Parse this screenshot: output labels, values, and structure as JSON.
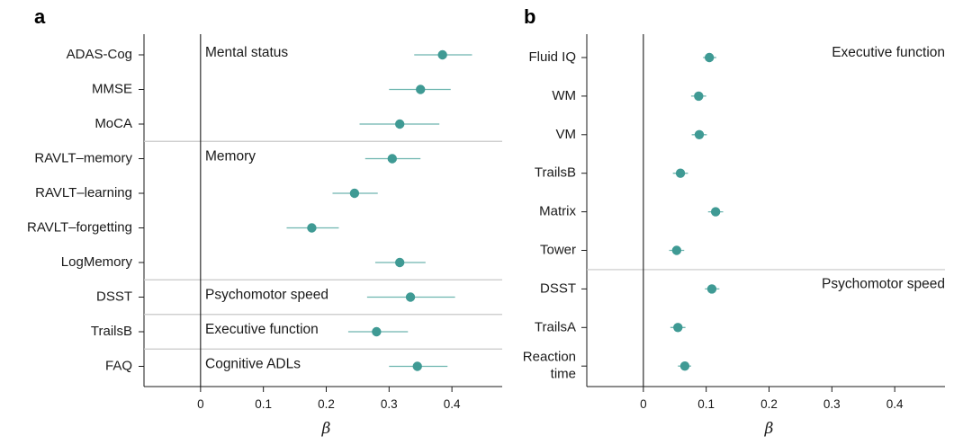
{
  "chart_data": [
    {
      "type": "scatter",
      "panel": "a",
      "xlabel": "β",
      "xlim": [
        -0.09,
        0.48
      ],
      "xticks": [
        "0",
        "0.1",
        "0.2",
        "0.3",
        "0.4"
      ],
      "xtick_values": [
        0,
        0.1,
        0.2,
        0.3,
        0.4
      ],
      "grid": false,
      "error_bars": "horizontal",
      "groups": [
        {
          "name": "Mental status",
          "rows": [
            0,
            1,
            2
          ]
        },
        {
          "name": "Memory",
          "rows": [
            3,
            4,
            5,
            6
          ]
        },
        {
          "name": "Psychomotor speed",
          "rows": [
            7
          ]
        },
        {
          "name": "Executive function",
          "rows": [
            8
          ]
        },
        {
          "name": "Cognitive ADLs",
          "rows": [
            9
          ]
        }
      ],
      "points": [
        {
          "label": [
            "ADAS-Cog"
          ],
          "value": 0.385,
          "lo": 0.34,
          "hi": 0.432
        },
        {
          "label": [
            "MMSE"
          ],
          "value": 0.35,
          "lo": 0.3,
          "hi": 0.398
        },
        {
          "label": [
            "MoCA"
          ],
          "value": 0.317,
          "lo": 0.253,
          "hi": 0.38
        },
        {
          "label": [
            "RAVLT–memory"
          ],
          "value": 0.305,
          "lo": 0.262,
          "hi": 0.35
        },
        {
          "label": [
            "RAVLT–learning"
          ],
          "value": 0.245,
          "lo": 0.21,
          "hi": 0.282
        },
        {
          "label": [
            "RAVLT–forgetting"
          ],
          "value": 0.177,
          "lo": 0.137,
          "hi": 0.22
        },
        {
          "label": [
            "LogMemory"
          ],
          "value": 0.317,
          "lo": 0.278,
          "hi": 0.358
        },
        {
          "label": [
            "DSST"
          ],
          "value": 0.334,
          "lo": 0.265,
          "hi": 0.405
        },
        {
          "label": [
            "TrailsB"
          ],
          "value": 0.28,
          "lo": 0.235,
          "hi": 0.33
        },
        {
          "label": [
            "FAQ"
          ],
          "value": 0.345,
          "lo": 0.3,
          "hi": 0.393
        }
      ]
    },
    {
      "type": "scatter",
      "panel": "b",
      "xlabel": "β",
      "xlim": [
        -0.09,
        0.48
      ],
      "xticks": [
        "0",
        "0.1",
        "0.2",
        "0.3",
        "0.4"
      ],
      "xtick_values": [
        0,
        0.1,
        0.2,
        0.3,
        0.4
      ],
      "grid": false,
      "error_bars": "horizontal",
      "groups": [
        {
          "name": "Executive function",
          "rows": [
            0,
            1,
            2,
            3,
            4,
            5
          ]
        },
        {
          "name": "Psychomotor speed",
          "rows": [
            6,
            7,
            8
          ]
        }
      ],
      "points": [
        {
          "label": [
            "Fluid IQ"
          ],
          "value": 0.105,
          "lo": 0.095,
          "hi": 0.116
        },
        {
          "label": [
            "WM"
          ],
          "value": 0.088,
          "lo": 0.076,
          "hi": 0.1
        },
        {
          "label": [
            "VM"
          ],
          "value": 0.089,
          "lo": 0.077,
          "hi": 0.101
        },
        {
          "label": [
            "TrailsB"
          ],
          "value": 0.059,
          "lo": 0.047,
          "hi": 0.071
        },
        {
          "label": [
            "Matrix"
          ],
          "value": 0.115,
          "lo": 0.103,
          "hi": 0.127
        },
        {
          "label": [
            "Tower"
          ],
          "value": 0.053,
          "lo": 0.041,
          "hi": 0.065
        },
        {
          "label": [
            "DSST"
          ],
          "value": 0.109,
          "lo": 0.098,
          "hi": 0.121
        },
        {
          "label": [
            "TrailsA"
          ],
          "value": 0.055,
          "lo": 0.043,
          "hi": 0.067
        },
        {
          "label": [
            "Reaction",
            "time"
          ],
          "value": 0.066,
          "lo": 0.055,
          "hi": 0.076
        }
      ]
    }
  ],
  "colors": {
    "point": "#3f9a94",
    "errorbar": "#6db5af",
    "zero_line": "#1a1a1a",
    "separator": "#c8c8c8",
    "axis": "#1a1a1a"
  }
}
